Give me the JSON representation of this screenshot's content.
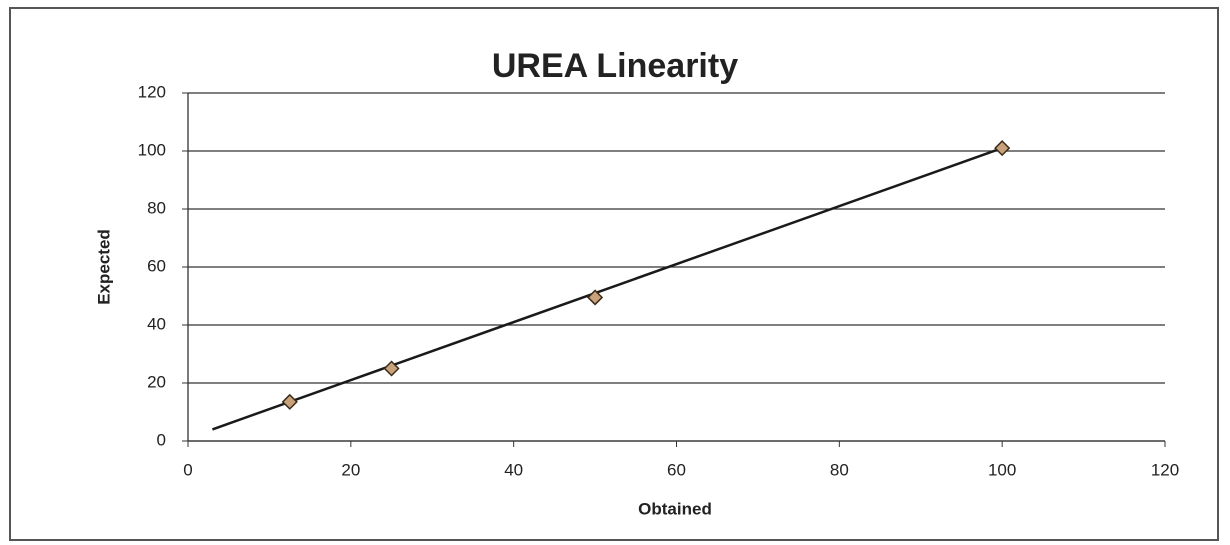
{
  "chart_data": {
    "type": "scatter",
    "title": "UREA  Linearity",
    "x_label": "Obtained",
    "y_label": "Expected",
    "x": [
      12.5,
      25,
      50,
      100
    ],
    "values": [
      13.5,
      25,
      49.5,
      101
    ],
    "color": "#c8a27a",
    "trendline": {
      "x": [
        3,
        100
      ],
      "values": [
        4,
        101
      ],
      "color": "#1a1a1a"
    },
    "xlim": [
      0,
      120
    ],
    "xticks": [
      0,
      20,
      40,
      60,
      80,
      100,
      120
    ],
    "ylim": [
      0,
      120
    ],
    "yticks": [
      0,
      20,
      40,
      60,
      80,
      100,
      120
    ],
    "grid": true
  }
}
